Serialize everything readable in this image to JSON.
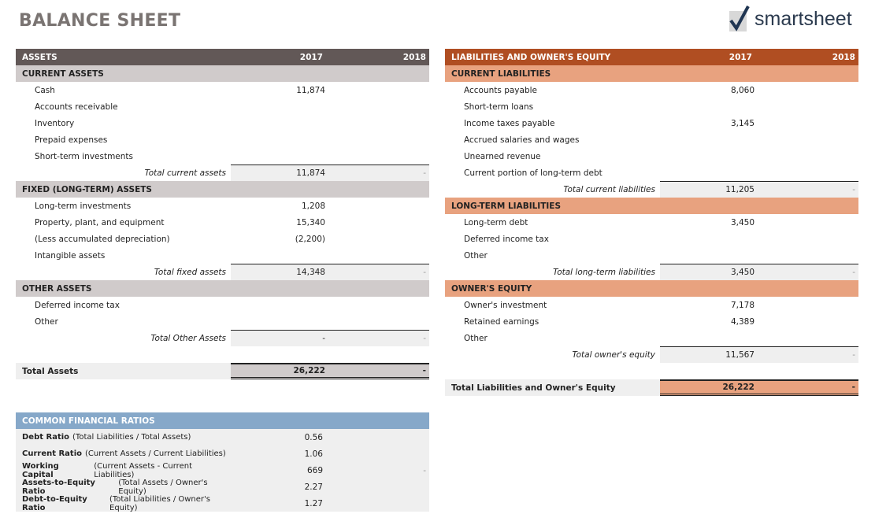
{
  "title": "BALANCE SHEET",
  "logo": {
    "text": "smartsheet"
  },
  "colors": {
    "assets_header": "#625857",
    "assets_section": "#d0cbcb",
    "liab_header": "#b04e22",
    "liab_section": "#e8a27f",
    "ratio_header": "#86a8c9"
  },
  "assets": {
    "header": [
      "ASSETS",
      "2017",
      "2018"
    ],
    "rows": [
      {
        "type": "sec",
        "label": "CURRENT ASSETS"
      },
      {
        "type": "item",
        "label": "Cash",
        "v2017": "11,874",
        "v2018": ""
      },
      {
        "type": "item",
        "label": "Accounts receivable",
        "v2017": "",
        "v2018": ""
      },
      {
        "type": "item",
        "label": "Inventory",
        "v2017": "",
        "v2018": ""
      },
      {
        "type": "item",
        "label": "Prepaid expenses",
        "v2017": "",
        "v2018": ""
      },
      {
        "type": "item",
        "label": "Short-term investments",
        "v2017": "",
        "v2018": ""
      },
      {
        "type": "tot",
        "label": "Total current assets",
        "v2017": "11,874",
        "v2018": "-"
      },
      {
        "type": "sec",
        "label": "FIXED (LONG-TERM) ASSETS"
      },
      {
        "type": "item",
        "label": "Long-term investments",
        "v2017": "1,208",
        "v2018": ""
      },
      {
        "type": "item",
        "label": "Property, plant, and equipment",
        "v2017": "15,340",
        "v2018": ""
      },
      {
        "type": "item",
        "label": "(Less accumulated depreciation)",
        "v2017": "(2,200)",
        "v2018": ""
      },
      {
        "type": "item",
        "label": "Intangible assets",
        "v2017": "",
        "v2018": ""
      },
      {
        "type": "tot",
        "label": "Total fixed assets",
        "v2017": "14,348",
        "v2018": "-"
      },
      {
        "type": "sec",
        "label": "OTHER ASSETS"
      },
      {
        "type": "item",
        "label": "Deferred income tax",
        "v2017": "",
        "v2018": ""
      },
      {
        "type": "item",
        "label": "Other",
        "v2017": "",
        "v2018": ""
      },
      {
        "type": "tot",
        "label": "Total Other Assets",
        "v2017": "-",
        "v2018": "-"
      },
      {
        "type": "blank"
      },
      {
        "type": "grand",
        "label": "Total Assets",
        "v2017": "26,222",
        "v2018": "-"
      }
    ]
  },
  "liabilities": {
    "header": [
      "LIABILITIES AND OWNER'S EQUITY",
      "2017",
      "2018"
    ],
    "rows": [
      {
        "type": "sec",
        "label": "CURRENT LIABILITIES"
      },
      {
        "type": "item",
        "label": "Accounts payable",
        "v2017": "8,060",
        "v2018": ""
      },
      {
        "type": "item",
        "label": "Short-term loans",
        "v2017": "",
        "v2018": ""
      },
      {
        "type": "item",
        "label": "Income taxes payable",
        "v2017": "3,145",
        "v2018": ""
      },
      {
        "type": "item",
        "label": "Accrued salaries and wages",
        "v2017": "",
        "v2018": ""
      },
      {
        "type": "item",
        "label": "Unearned revenue",
        "v2017": "",
        "v2018": ""
      },
      {
        "type": "item",
        "label": "Current portion of long-term debt",
        "v2017": "",
        "v2018": ""
      },
      {
        "type": "tot",
        "label": "Total current liabilities",
        "v2017": "11,205",
        "v2018": "-"
      },
      {
        "type": "sec",
        "label": "LONG-TERM LIABILITIES"
      },
      {
        "type": "item",
        "label": "Long-term debt",
        "v2017": "3,450",
        "v2018": ""
      },
      {
        "type": "item",
        "label": "Deferred income tax",
        "v2017": "",
        "v2018": ""
      },
      {
        "type": "item",
        "label": "Other",
        "v2017": "",
        "v2018": ""
      },
      {
        "type": "tot",
        "label": "Total long-term liabilities",
        "v2017": "3,450",
        "v2018": "-"
      },
      {
        "type": "sec",
        "label": "OWNER'S EQUITY"
      },
      {
        "type": "item",
        "label": "Owner's investment",
        "v2017": "7,178",
        "v2018": ""
      },
      {
        "type": "item",
        "label": "Retained earnings",
        "v2017": "4,389",
        "v2018": ""
      },
      {
        "type": "item",
        "label": "Other",
        "v2017": "",
        "v2018": ""
      },
      {
        "type": "tot",
        "label": "Total owner's equity",
        "v2017": "11,567",
        "v2018": "-"
      },
      {
        "type": "blank"
      },
      {
        "type": "grand",
        "label": "Total Liabilities and Owner's Equity",
        "v2017": "26,222",
        "v2018": "-"
      }
    ]
  },
  "ratios": {
    "header": "COMMON FINANCIAL RATIOS",
    "rows": [
      {
        "name": "Debt Ratio",
        "formula": "(Total Liabilities / Total Assets)",
        "v2017": "0.56",
        "v2018": ""
      },
      {
        "name": "Current Ratio",
        "formula": "(Current Assets / Current Liabilities)",
        "v2017": "1.06",
        "v2018": ""
      },
      {
        "name": "Working Capital",
        "formula": "(Current Assets - Current Liabilities)",
        "v2017": "669",
        "v2018": "-"
      },
      {
        "name": "Assets-to-Equity Ratio",
        "formula": "(Total Assets / Owner's Equity)",
        "v2017": "2.27",
        "v2018": ""
      },
      {
        "name": "Debt-to-Equity Ratio",
        "formula": "(Total Liabilities / Owner's Equity)",
        "v2017": "1.27",
        "v2018": ""
      }
    ]
  }
}
